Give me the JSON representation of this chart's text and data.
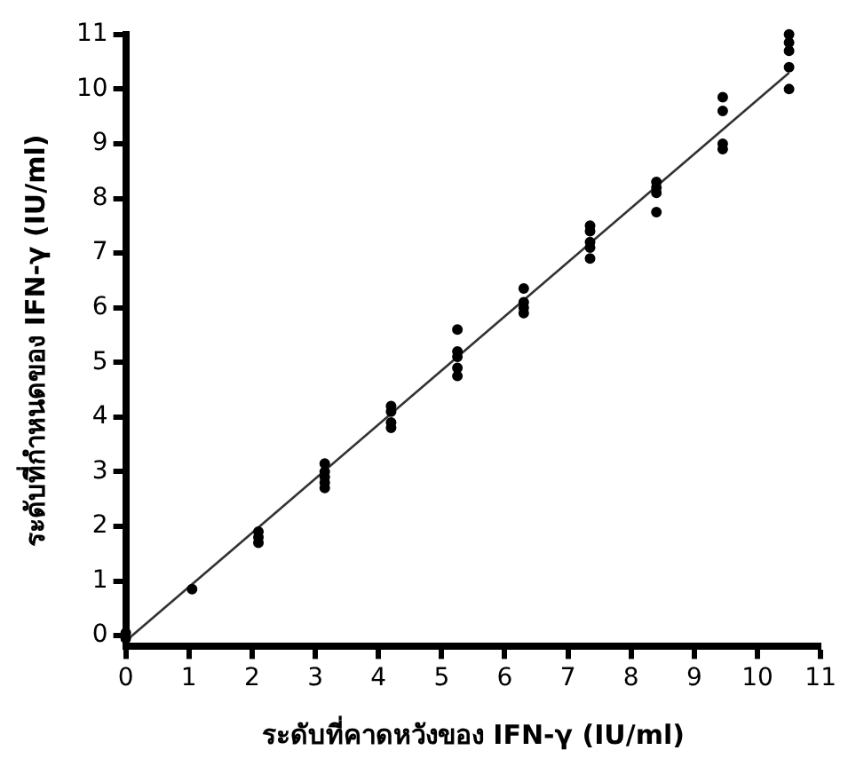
{
  "chart_data": {
    "type": "scatter",
    "xlabel": "ระดับที่คาดหวังของ IFN-γ (IU/ml)",
    "ylabel": "ระดับที่กำหนดของ IFN-γ (IU/ml)",
    "xlim": [
      0,
      11
    ],
    "ylim": [
      -0.2,
      11
    ],
    "xticks": [
      0,
      1,
      2,
      3,
      4,
      5,
      6,
      7,
      8,
      9,
      10,
      11
    ],
    "yticks": [
      0,
      1,
      2,
      3,
      4,
      5,
      6,
      7,
      8,
      9,
      10,
      11
    ],
    "grid": false,
    "legend": false,
    "series": [
      {
        "color": "#000000",
        "marker": "circle",
        "x": [
          0,
          0,
          1.05,
          2.1,
          2.1,
          2.1,
          3.15,
          3.15,
          3.15,
          3.15,
          3.15,
          4.2,
          4.2,
          4.2,
          4.2,
          5.25,
          5.25,
          5.25,
          5.25,
          5.25,
          6.3,
          6.3,
          6.3,
          6.3,
          7.35,
          7.35,
          7.35,
          7.35,
          7.35,
          8.4,
          8.4,
          8.4,
          8.4,
          9.45,
          9.45,
          9.45,
          9.45,
          10.5,
          10.5,
          10.5,
          10.5,
          10.5
        ],
        "values": [
          -0.05,
          0.05,
          0.85,
          1.7,
          1.8,
          1.9,
          2.7,
          2.8,
          2.9,
          3.0,
          3.15,
          3.8,
          3.9,
          4.1,
          4.2,
          4.75,
          4.9,
          5.1,
          5.2,
          5.6,
          5.9,
          6.0,
          6.1,
          6.35,
          6.9,
          7.1,
          7.2,
          7.4,
          7.5,
          7.75,
          8.1,
          8.2,
          8.3,
          8.9,
          9.0,
          9.6,
          9.85,
          10.0,
          10.4,
          10.7,
          10.85,
          11.0
        ]
      },
      {
        "type": "line",
        "color": "#333333",
        "x": [
          0,
          10.5
        ],
        "values": [
          -0.1,
          10.3
        ]
      }
    ]
  }
}
